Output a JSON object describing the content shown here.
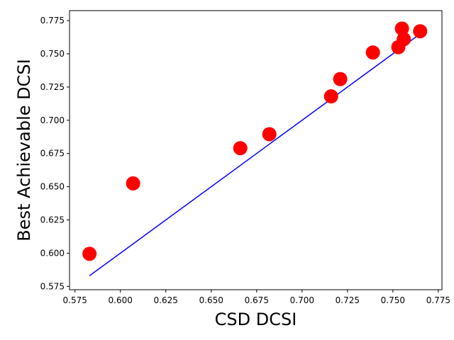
{
  "chart_data": {
    "type": "scatter",
    "title": "",
    "xlabel": "CSD DCSI",
    "ylabel": "Best Achievable DCSI",
    "xlim": [
      0.572,
      0.777
    ],
    "ylim": [
      0.5725,
      0.7825
    ],
    "xticks": [
      0.575,
      0.6,
      0.625,
      0.65,
      0.675,
      0.7,
      0.725,
      0.75,
      0.775
    ],
    "xtick_labels": [
      "0.575",
      "0.600",
      "0.625",
      "0.650",
      "0.675",
      "0.700",
      "0.725",
      "0.750",
      "0.775"
    ],
    "yticks": [
      0.575,
      0.6,
      0.625,
      0.65,
      0.675,
      0.7,
      0.725,
      0.75,
      0.775
    ],
    "ytick_labels": [
      "0.575",
      "0.600",
      "0.625",
      "0.650",
      "0.675",
      "0.700",
      "0.725",
      "0.750",
      "0.775"
    ],
    "grid": false,
    "series": [
      {
        "kind": "scatter",
        "color": "#ff0000",
        "x": [
          0.583,
          0.607,
          0.666,
          0.682,
          0.716,
          0.721,
          0.739,
          0.753,
          0.755,
          0.756,
          0.765
        ],
        "y": [
          0.5995,
          0.6525,
          0.679,
          0.6895,
          0.718,
          0.731,
          0.751,
          0.755,
          0.769,
          0.761,
          0.767
        ]
      },
      {
        "kind": "line",
        "color": "#0000ff",
        "x": [
          0.583,
          0.765
        ],
        "y": [
          0.583,
          0.765
        ]
      }
    ]
  }
}
